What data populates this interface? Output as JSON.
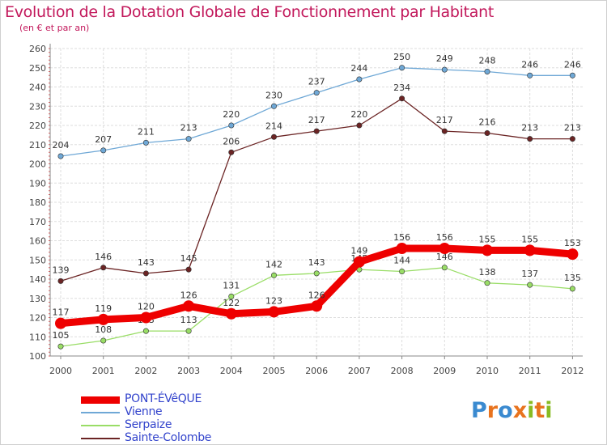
{
  "chart_data": {
    "type": "line",
    "title": "Evolution de la Dotation Globale de Fonctionnement par Habitant",
    "subtitle": "(en € et par an)",
    "categories": [
      "2000",
      "2001",
      "2002",
      "2003",
      "2004",
      "2005",
      "2006",
      "2007",
      "2008",
      "2009",
      "2010",
      "2011",
      "2012"
    ],
    "yticks": [
      100,
      110,
      120,
      130,
      140,
      150,
      160,
      170,
      180,
      190,
      200,
      210,
      220,
      230,
      240,
      250,
      260
    ],
    "ylim": [
      100,
      260
    ],
    "grid": true,
    "series": [
      {
        "name": "PONT-ÉVêQUE",
        "color": "#ee0000",
        "values": [
          117,
          119,
          120,
          126,
          122,
          123,
          126,
          149,
          156,
          156,
          155,
          155,
          153
        ]
      },
      {
        "name": "Vienne",
        "color": "#6fa8d6",
        "values": [
          204,
          207,
          211,
          213,
          220,
          230,
          237,
          244,
          250,
          249,
          248,
          246,
          246
        ]
      },
      {
        "name": "Serpaize",
        "color": "#99dd66",
        "values": [
          105,
          108,
          113,
          113,
          131,
          142,
          143,
          145,
          144,
          146,
          138,
          137,
          135
        ]
      },
      {
        "name": "Sainte-Colombe",
        "color": "#6b2424",
        "values": [
          139,
          146,
          143,
          145,
          206,
          214,
          217,
          220,
          234,
          217,
          216,
          213,
          213
        ]
      }
    ],
    "data_labels": {
      "PONT-ÉVêQUE": [
        "117",
        "119",
        "120",
        "126",
        "122",
        "123",
        "126",
        "149",
        "156",
        "156",
        "155",
        "155",
        "153"
      ],
      "Vienne": [
        "204",
        "207",
        "211",
        "213",
        "220",
        "230",
        "237",
        "244",
        "250",
        "249",
        "248",
        "246",
        "246"
      ],
      "Serpaize": [
        "105",
        "108",
        "113",
        "113",
        "131",
        "142",
        "143",
        "145",
        "144",
        "146",
        "138",
        "137",
        "135"
      ],
      "Sainte-Colombe": [
        "139",
        "146",
        "143",
        "145",
        "206",
        "214",
        "217",
        "220",
        "234",
        "217",
        "216",
        "213",
        "213"
      ]
    }
  },
  "legend": {
    "items": [
      {
        "label": "PONT-ÉVêQUE",
        "color": "#ee0000"
      },
      {
        "label": "Vienne",
        "color": "#6fa8d6"
      },
      {
        "label": "Serpaize",
        "color": "#99dd66"
      },
      {
        "label": "Sainte-Colombe",
        "color": "#6b2424"
      }
    ]
  },
  "logo": {
    "text": "Proxiti",
    "letters": [
      {
        "ch": "P",
        "color": "#3a8ad0"
      },
      {
        "ch": "r",
        "color": "#e8731e"
      },
      {
        "ch": "o",
        "color": "#3a8ad0"
      },
      {
        "ch": "x",
        "color": "#e8731e"
      },
      {
        "ch": "i",
        "color": "#88bb22"
      },
      {
        "ch": "t",
        "color": "#e8731e"
      },
      {
        "ch": "i",
        "color": "#88bb22"
      }
    ]
  }
}
